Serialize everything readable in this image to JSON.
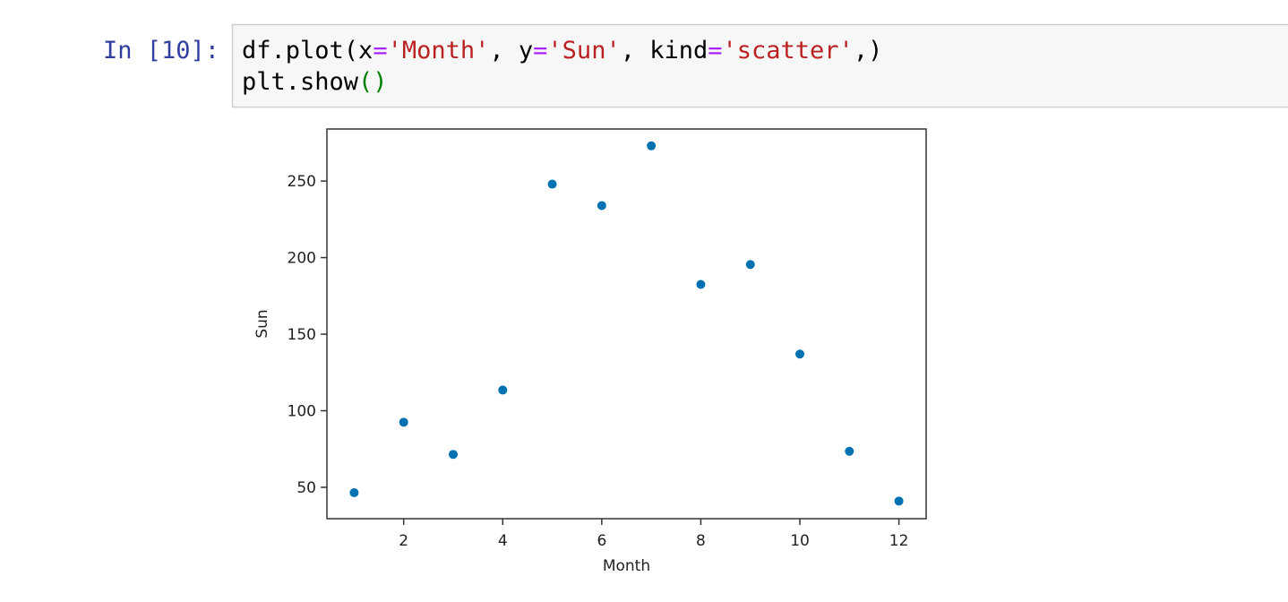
{
  "cell": {
    "prompt": "In [10]:",
    "lines": [
      {
        "tokens": [
          {
            "text": "df.plot(x",
            "color": "#000000"
          },
          {
            "text": "=",
            "color": "#aa22ff"
          },
          {
            "text": "'Month'",
            "color": "#ba2121"
          },
          {
            "text": ", y",
            "color": "#000000"
          },
          {
            "text": "=",
            "color": "#aa22ff"
          },
          {
            "text": "'Sun'",
            "color": "#ba2121"
          },
          {
            "text": ", kind",
            "color": "#000000"
          },
          {
            "text": "=",
            "color": "#aa22ff"
          },
          {
            "text": "'scatter'",
            "color": "#ba2121"
          },
          {
            "text": ",)",
            "color": "#000000"
          }
        ]
      },
      {
        "tokens": [
          {
            "text": "plt.show",
            "color": "#000000"
          },
          {
            "text": "()",
            "color": "#008000"
          }
        ]
      }
    ]
  },
  "chart_data": {
    "type": "scatter",
    "x_label": "Month",
    "y_label": "Sun",
    "x": [
      1,
      2,
      3,
      4,
      5,
      6,
      7,
      8,
      9,
      10,
      11,
      12
    ],
    "series": [
      {
        "color": "#0072b2",
        "values": [
          46.5,
          92.5,
          71.5,
          113.5,
          248,
          234,
          273,
          182.5,
          195.5,
          137,
          73.5,
          41
        ]
      }
    ],
    "xlim": [
      0.45,
      12.55
    ],
    "ylim": [
      29.5,
      284
    ],
    "xticks": [
      2,
      4,
      6,
      8,
      10,
      12
    ],
    "yticks": [
      50,
      100,
      150,
      200,
      250
    ],
    "grid": false
  }
}
